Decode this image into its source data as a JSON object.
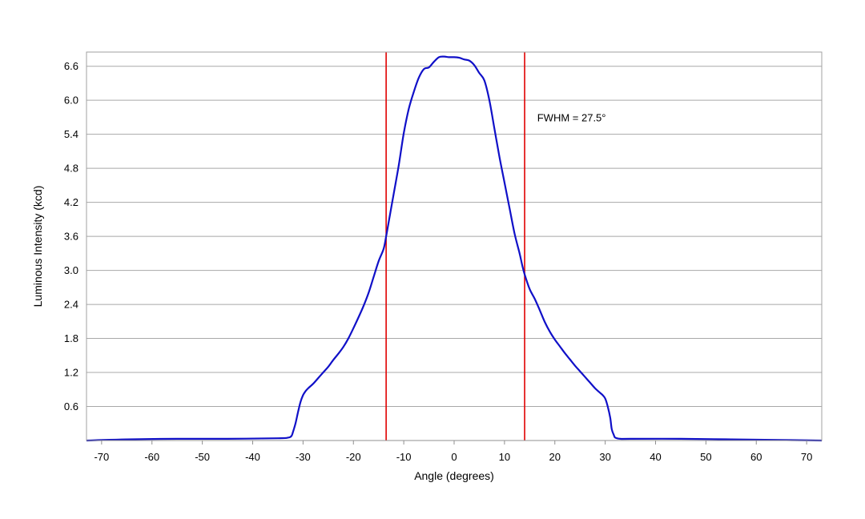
{
  "chart_data": {
    "type": "line",
    "title": "",
    "xlabel": "Angle (degrees)",
    "ylabel": "Luminous Intensity (kcd)",
    "xlim": [
      -73,
      73
    ],
    "ylim": [
      0,
      6.85
    ],
    "x_ticks": [
      -70,
      -60,
      -50,
      -40,
      -30,
      -20,
      -10,
      0,
      10,
      20,
      30,
      40,
      50,
      60,
      70
    ],
    "y_ticks": [
      0.6,
      1.2,
      1.8,
      2.4,
      3.0,
      3.6,
      4.2,
      4.8,
      5.4,
      6.0,
      6.6
    ],
    "x_tick_labels": [
      "-70",
      "-60",
      "-50",
      "-40",
      "-30",
      "-20",
      "-10",
      "0",
      "10",
      "20",
      "30",
      "40",
      "50",
      "60",
      "70"
    ],
    "y_tick_labels": [
      "0.6",
      "1.2",
      "1.8",
      "2.4",
      "3.0",
      "3.6",
      "4.2",
      "4.8",
      "5.4",
      "6.0",
      "6.6"
    ],
    "grid": {
      "horizontal": true,
      "vertical": false
    },
    "legend": "none",
    "series": [
      {
        "color": "#1010c8",
        "x": [
          -73,
          -65,
          -55,
          -45,
          -35,
          -33,
          -32.3,
          -32,
          -31.5,
          -31,
          -30.5,
          -30,
          -29.5,
          -29,
          -28,
          -27,
          -26,
          -25,
          -24,
          -23,
          -22,
          -21,
          -20,
          -19,
          -18,
          -17,
          -16,
          -15,
          -14,
          -13.5,
          -13,
          -12,
          -11,
          -10,
          -9,
          -8,
          -7,
          -6,
          -5,
          -4,
          -3,
          -2,
          -1,
          0,
          1,
          2,
          3,
          4,
          5,
          6,
          7,
          8,
          9,
          10,
          11,
          12,
          13,
          13.5,
          14,
          15,
          16,
          17,
          18,
          19,
          20,
          21,
          22,
          23,
          24,
          25,
          26,
          27,
          28,
          29,
          29.5,
          30,
          30.5,
          31,
          31.3,
          31.7,
          32,
          33,
          35,
          45,
          55,
          65,
          73
        ],
        "y": [
          0.0,
          0.02,
          0.03,
          0.03,
          0.04,
          0.05,
          0.08,
          0.15,
          0.3,
          0.5,
          0.68,
          0.8,
          0.87,
          0.92,
          1.0,
          1.1,
          1.2,
          1.3,
          1.42,
          1.53,
          1.65,
          1.8,
          1.98,
          2.17,
          2.37,
          2.6,
          2.88,
          3.16,
          3.38,
          3.6,
          3.85,
          4.35,
          4.85,
          5.42,
          5.85,
          6.15,
          6.4,
          6.55,
          6.58,
          6.68,
          6.76,
          6.77,
          6.76,
          6.76,
          6.75,
          6.72,
          6.7,
          6.62,
          6.48,
          6.35,
          6.0,
          5.5,
          5.0,
          4.55,
          4.1,
          3.65,
          3.3,
          3.1,
          2.93,
          2.67,
          2.5,
          2.3,
          2.09,
          1.92,
          1.78,
          1.66,
          1.54,
          1.43,
          1.32,
          1.22,
          1.12,
          1.02,
          0.92,
          0.84,
          0.8,
          0.74,
          0.6,
          0.4,
          0.2,
          0.1,
          0.05,
          0.03,
          0.03,
          0.03,
          0.02,
          0.01,
          0.0
        ]
      }
    ],
    "vlines": [
      {
        "x": -13.5,
        "color": "#e00000"
      },
      {
        "x": 14.0,
        "color": "#e00000"
      }
    ],
    "annotations": [
      {
        "text": "FWHM = 27.5°",
        "x": 16.5,
        "y": 5.7
      }
    ]
  }
}
